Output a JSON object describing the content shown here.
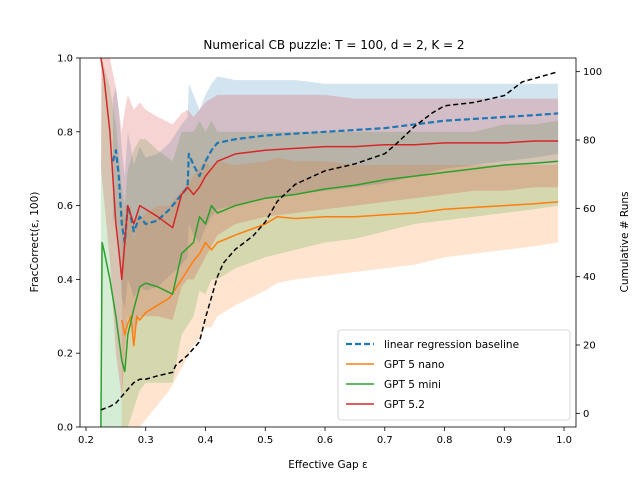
{
  "chart_data": {
    "type": "line",
    "title": "Numerical CB puzzle: T = 100, d = 2, K = 2",
    "xlabel": "Effective Gap ε",
    "ylabel": "FracCorrect(ε, 100)",
    "y2label": "Cumulative # Runs",
    "xlim": [
      0.19,
      1.02
    ],
    "ylim": [
      0.0,
      1.0
    ],
    "y2lim": [
      -4,
      104
    ],
    "xticks": [
      0.2,
      0.3,
      0.4,
      0.5,
      0.6,
      0.7,
      0.8,
      0.9,
      1.0
    ],
    "xtick_labels": [
      "0.2",
      "0.3",
      "0.4",
      "0.5",
      "0.6",
      "0.7",
      "0.8",
      "0.9",
      "1.0"
    ],
    "yticks": [
      0.0,
      0.2,
      0.4,
      0.6,
      0.8,
      1.0
    ],
    "ytick_labels": [
      "0.0",
      "0.2",
      "0.4",
      "0.6",
      "0.8",
      "1.0"
    ],
    "y2ticks": [
      0,
      20,
      40,
      60,
      80,
      100
    ],
    "y2tick_labels": [
      "0",
      "20",
      "40",
      "60",
      "80",
      "100"
    ],
    "legend_position": "bottom-right",
    "series": [
      {
        "name": "linear regression baseline",
        "color": "#1f77b4",
        "dash": "dashed",
        "x": [
          0.245,
          0.25,
          0.255,
          0.26,
          0.265,
          0.27,
          0.275,
          0.28,
          0.29,
          0.3,
          0.32,
          0.34,
          0.36,
          0.37,
          0.372,
          0.38,
          0.39,
          0.4,
          0.41,
          0.42,
          0.45,
          0.5,
          0.55,
          0.6,
          0.65,
          0.7,
          0.75,
          0.8,
          0.85,
          0.9,
          0.95,
          0.99
        ],
        "y": [
          0.72,
          0.75,
          0.68,
          0.55,
          0.5,
          0.6,
          0.57,
          0.53,
          0.57,
          0.55,
          0.56,
          0.59,
          0.63,
          0.65,
          0.74,
          0.71,
          0.68,
          0.72,
          0.75,
          0.77,
          0.78,
          0.79,
          0.795,
          0.8,
          0.805,
          0.81,
          0.82,
          0.83,
          0.835,
          0.84,
          0.845,
          0.85
        ],
        "band_lower": [
          0.55,
          0.58,
          0.5,
          0.35,
          0.32,
          0.4,
          0.38,
          0.35,
          0.38,
          0.37,
          0.38,
          0.41,
          0.44,
          0.46,
          0.55,
          0.52,
          0.5,
          0.54,
          0.57,
          0.59,
          0.6,
          0.62,
          0.63,
          0.64,
          0.65,
          0.66,
          0.68,
          0.7,
          0.71,
          0.72,
          0.73,
          0.74
        ],
        "band_upper": [
          0.89,
          0.92,
          0.86,
          0.75,
          0.68,
          0.8,
          0.76,
          0.71,
          0.76,
          0.73,
          0.74,
          0.77,
          0.82,
          0.84,
          0.93,
          0.9,
          0.86,
          0.9,
          0.93,
          0.95,
          0.94,
          0.94,
          0.94,
          0.93,
          0.93,
          0.93,
          0.93,
          0.93,
          0.93,
          0.93,
          0.93,
          0.93
        ]
      },
      {
        "name": "GPT 5 nano",
        "color": "#ff7f0e",
        "dash": "solid",
        "x": [
          0.26,
          0.265,
          0.27,
          0.275,
          0.28,
          0.285,
          0.29,
          0.3,
          0.32,
          0.34,
          0.36,
          0.38,
          0.39,
          0.4,
          0.41,
          0.42,
          0.45,
          0.5,
          0.52,
          0.55,
          0.6,
          0.65,
          0.7,
          0.75,
          0.8,
          0.85,
          0.9,
          0.95,
          0.99
        ],
        "y": [
          0.29,
          0.25,
          0.28,
          0.3,
          0.22,
          0.3,
          0.29,
          0.31,
          0.33,
          0.35,
          0.4,
          0.45,
          0.47,
          0.5,
          0.48,
          0.5,
          0.52,
          0.55,
          0.57,
          0.565,
          0.57,
          0.57,
          0.575,
          0.58,
          0.59,
          0.595,
          0.6,
          0.605,
          0.61
        ],
        "band_lower": [
          0.0,
          0.0,
          0.0,
          0.0,
          0.0,
          0.0,
          0.0,
          0.02,
          0.06,
          0.1,
          0.16,
          0.22,
          0.24,
          0.27,
          0.27,
          0.3,
          0.33,
          0.37,
          0.39,
          0.4,
          0.41,
          0.42,
          0.43,
          0.44,
          0.46,
          0.47,
          0.48,
          0.49,
          0.5
        ],
        "band_upper": [
          0.6,
          0.56,
          0.58,
          0.6,
          0.5,
          0.58,
          0.56,
          0.58,
          0.6,
          0.6,
          0.64,
          0.68,
          0.7,
          0.72,
          0.7,
          0.72,
          0.71,
          0.72,
          0.73,
          0.72,
          0.72,
          0.71,
          0.71,
          0.71,
          0.71,
          0.71,
          0.71,
          0.71,
          0.71
        ]
      },
      {
        "name": "GPT 5 mini",
        "color": "#2ca02c",
        "dash": "solid",
        "x": [
          0.225,
          0.227,
          0.23,
          0.24,
          0.25,
          0.26,
          0.265,
          0.27,
          0.28,
          0.29,
          0.3,
          0.32,
          0.345,
          0.36,
          0.38,
          0.39,
          0.4,
          0.41,
          0.42,
          0.45,
          0.5,
          0.55,
          0.6,
          0.65,
          0.7,
          0.75,
          0.8,
          0.85,
          0.9,
          0.95,
          0.99
        ],
        "y": [
          0.0,
          0.5,
          0.48,
          0.4,
          0.3,
          0.18,
          0.15,
          0.25,
          0.32,
          0.38,
          0.39,
          0.38,
          0.36,
          0.47,
          0.5,
          0.57,
          0.55,
          0.6,
          0.58,
          0.6,
          0.62,
          0.63,
          0.645,
          0.655,
          0.67,
          0.68,
          0.69,
          0.7,
          0.71,
          0.715,
          0.72
        ],
        "band_lower": [
          0.0,
          0.0,
          0.0,
          0.0,
          0.0,
          0.0,
          0.0,
          0.0,
          0.05,
          0.1,
          0.12,
          0.12,
          0.12,
          0.25,
          0.3,
          0.37,
          0.36,
          0.4,
          0.4,
          0.43,
          0.46,
          0.48,
          0.5,
          0.51,
          0.53,
          0.55,
          0.56,
          0.57,
          0.58,
          0.59,
          0.6
        ],
        "band_upper": [
          0.6,
          1.0,
          0.98,
          0.92,
          0.82,
          0.65,
          0.6,
          0.7,
          0.75,
          0.78,
          0.78,
          0.75,
          0.72,
          0.8,
          0.8,
          0.83,
          0.8,
          0.83,
          0.8,
          0.8,
          0.8,
          0.8,
          0.8,
          0.8,
          0.8,
          0.8,
          0.8,
          0.8,
          0.82,
          0.82,
          0.83
        ]
      },
      {
        "name": "GPT 5.2",
        "color": "#d62728",
        "dash": "solid",
        "x": [
          0.225,
          0.23,
          0.24,
          0.25,
          0.255,
          0.26,
          0.265,
          0.27,
          0.28,
          0.29,
          0.3,
          0.32,
          0.345,
          0.36,
          0.37,
          0.38,
          0.39,
          0.4,
          0.41,
          0.42,
          0.45,
          0.5,
          0.55,
          0.6,
          0.65,
          0.7,
          0.75,
          0.8,
          0.85,
          0.9,
          0.95,
          0.99
        ],
        "y": [
          1.0,
          0.95,
          0.8,
          0.55,
          0.48,
          0.4,
          0.5,
          0.6,
          0.55,
          0.6,
          0.59,
          0.57,
          0.54,
          0.63,
          0.65,
          0.63,
          0.65,
          0.68,
          0.7,
          0.72,
          0.74,
          0.75,
          0.755,
          0.76,
          0.76,
          0.765,
          0.765,
          0.77,
          0.77,
          0.77,
          0.775,
          0.775
        ],
        "band_lower": [
          0.7,
          0.62,
          0.45,
          0.2,
          0.14,
          0.08,
          0.2,
          0.3,
          0.25,
          0.3,
          0.3,
          0.3,
          0.29,
          0.38,
          0.4,
          0.4,
          0.43,
          0.46,
          0.49,
          0.52,
          0.55,
          0.57,
          0.58,
          0.59,
          0.6,
          0.61,
          0.62,
          0.63,
          0.64,
          0.64,
          0.65,
          0.65
        ],
        "band_upper": [
          1.0,
          1.0,
          1.0,
          0.92,
          0.86,
          0.8,
          0.86,
          0.9,
          0.86,
          0.88,
          0.86,
          0.84,
          0.82,
          0.85,
          0.86,
          0.84,
          0.86,
          0.88,
          0.89,
          0.9,
          0.9,
          0.9,
          0.9,
          0.9,
          0.89,
          0.89,
          0.89,
          0.89,
          0.89,
          0.89,
          0.89,
          0.89
        ]
      }
    ],
    "cumulative_runs": {
      "name": "Cumulative # Runs",
      "axis": "right",
      "color": "#000000",
      "dash": "dashed",
      "x": [
        0.225,
        0.24,
        0.25,
        0.26,
        0.27,
        0.28,
        0.29,
        0.3,
        0.32,
        0.345,
        0.35,
        0.37,
        0.39,
        0.4,
        0.41,
        0.42,
        0.43,
        0.45,
        0.48,
        0.5,
        0.52,
        0.55,
        0.6,
        0.65,
        0.7,
        0.72,
        0.75,
        0.78,
        0.8,
        0.85,
        0.9,
        0.93,
        0.95,
        0.99
      ],
      "y": [
        1,
        2,
        3,
        5,
        7,
        9,
        10,
        10,
        11,
        12,
        14,
        17,
        21,
        28,
        34,
        40,
        44,
        48,
        52,
        56,
        62,
        67,
        71,
        73,
        76,
        79,
        84,
        88,
        90,
        91,
        93,
        97,
        98,
        100
      ]
    }
  }
}
